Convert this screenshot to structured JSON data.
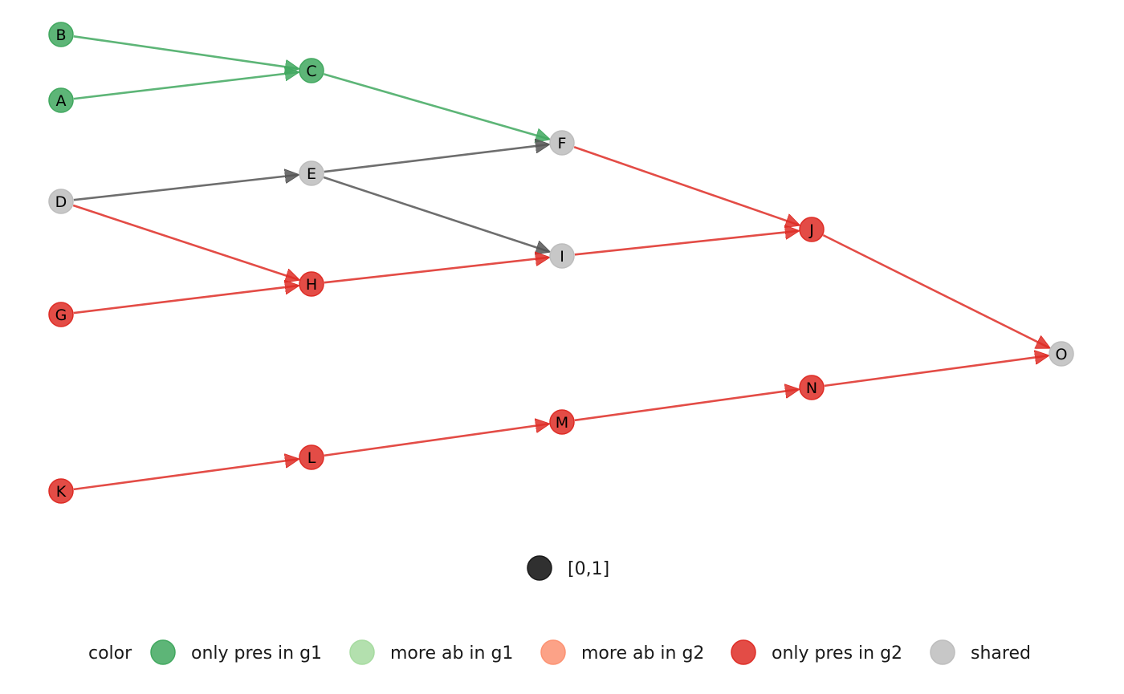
{
  "diagram": {
    "type": "directed-graph",
    "colors": {
      "only_pres_g1": "#41a85f",
      "more_ab_g1": "#a6dba0",
      "more_ab_g2": "#fc9272",
      "only_pres_g2": "#de2d26",
      "shared": "#bdbdbd",
      "edge_shared": "#555555",
      "size_key": "#1a1a1a"
    },
    "nodes": [
      {
        "id": "A",
        "color": "only_pres_g1"
      },
      {
        "id": "B",
        "color": "only_pres_g1"
      },
      {
        "id": "C",
        "color": "only_pres_g1"
      },
      {
        "id": "D",
        "color": "shared"
      },
      {
        "id": "E",
        "color": "shared"
      },
      {
        "id": "F",
        "color": "shared"
      },
      {
        "id": "G",
        "color": "only_pres_g2"
      },
      {
        "id": "H",
        "color": "only_pres_g2"
      },
      {
        "id": "I",
        "color": "shared"
      },
      {
        "id": "J",
        "color": "only_pres_g2"
      },
      {
        "id": "K",
        "color": "only_pres_g2"
      },
      {
        "id": "L",
        "color": "only_pres_g2"
      },
      {
        "id": "M",
        "color": "only_pres_g2"
      },
      {
        "id": "N",
        "color": "only_pres_g2"
      },
      {
        "id": "O",
        "color": "shared"
      }
    ],
    "edges": [
      {
        "from": "B",
        "to": "C",
        "color": "only_pres_g1"
      },
      {
        "from": "A",
        "to": "C",
        "color": "only_pres_g1"
      },
      {
        "from": "C",
        "to": "F",
        "color": "only_pres_g1"
      },
      {
        "from": "D",
        "to": "E",
        "color": "edge_shared"
      },
      {
        "from": "E",
        "to": "F",
        "color": "edge_shared"
      },
      {
        "from": "E",
        "to": "I",
        "color": "edge_shared"
      },
      {
        "from": "D",
        "to": "H",
        "color": "only_pres_g2"
      },
      {
        "from": "G",
        "to": "H",
        "color": "only_pres_g2"
      },
      {
        "from": "H",
        "to": "I",
        "color": "only_pres_g2"
      },
      {
        "from": "F",
        "to": "J",
        "color": "only_pres_g2"
      },
      {
        "from": "I",
        "to": "J",
        "color": "only_pres_g2"
      },
      {
        "from": "J",
        "to": "O",
        "color": "only_pres_g2"
      },
      {
        "from": "K",
        "to": "L",
        "color": "only_pres_g2"
      },
      {
        "from": "L",
        "to": "M",
        "color": "only_pres_g2"
      },
      {
        "from": "M",
        "to": "N",
        "color": "only_pres_g2"
      },
      {
        "from": "N",
        "to": "O",
        "color": "only_pres_g2"
      }
    ]
  },
  "legend": {
    "size_key_label": "[0,1]",
    "color_title": "color",
    "color_items": [
      {
        "key": "only_pres_g1",
        "label": "only pres in g1"
      },
      {
        "key": "more_ab_g1",
        "label": "more ab in g1"
      },
      {
        "key": "more_ab_g2",
        "label": "more ab in g2"
      },
      {
        "key": "only_pres_g2",
        "label": "only pres in g2"
      },
      {
        "key": "shared",
        "label": "shared"
      }
    ]
  }
}
